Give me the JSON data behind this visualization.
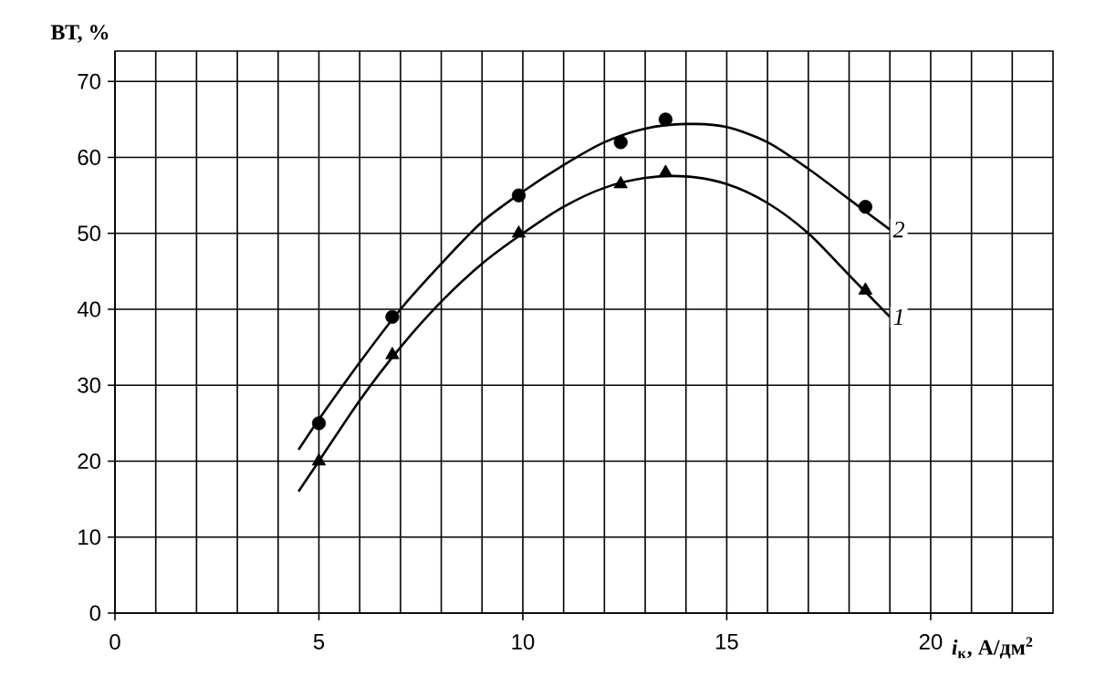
{
  "chart_data": {
    "type": "scatter",
    "xlabel": "*i*$_{к}$, А/дм$^{2}$",
    "ylabel": "ВТ, %",
    "xlim": [
      0,
      23
    ],
    "ylim": [
      0,
      74
    ],
    "xticks": [
      0,
      {
        "value": 1,
        "label": null
      },
      {
        "value": 2,
        "label": null
      },
      {
        "value": 3,
        "label": null
      },
      {
        "value": 4,
        "label": null
      },
      5,
      {
        "value": 6,
        "label": null
      },
      {
        "value": 7,
        "label": null
      },
      {
        "value": 8,
        "label": null
      },
      {
        "value": 9,
        "label": null
      },
      10,
      {
        "value": 11,
        "label": null
      },
      {
        "value": 12,
        "label": null
      },
      {
        "value": 13,
        "label": null
      },
      {
        "value": 14,
        "label": null
      },
      15,
      {
        "value": 16,
        "label": null
      },
      {
        "value": 17,
        "label": null
      },
      {
        "value": 18,
        "label": null
      },
      {
        "value": 19,
        "label": null
      },
      20,
      {
        "value": 21,
        "label": null
      },
      {
        "value": 22,
        "label": null
      }
    ],
    "yticks": [
      0,
      10,
      20,
      30,
      40,
      50,
      60,
      70
    ],
    "grid": true,
    "series": [
      {
        "marker": "circle",
        "color": "#000000",
        "x": [
          5,
          6.8,
          9.9,
          12.4,
          13.5,
          18.4
        ],
        "values": [
          25,
          39,
          55,
          62,
          65,
          53.5
        ]
      },
      {
        "marker": "triangle",
        "color": "#000000",
        "x": [
          5,
          6.8,
          9.9,
          12.4,
          13.5,
          18.4
        ],
        "values": [
          20,
          34,
          50,
          56.5,
          58,
          42.5
        ]
      },
      {
        "type": "line",
        "marker": "none",
        "color": "#000000",
        "x": [
          4.5,
          5,
          6,
          7,
          8,
          9,
          10,
          11,
          12,
          13,
          14,
          15,
          16,
          17,
          18,
          19
        ],
        "values": [
          21.5,
          25.5,
          33,
          40,
          46,
          51.5,
          55.5,
          59,
          62,
          63.8,
          64.4,
          64,
          62,
          58.5,
          54.5,
          50.5
        ]
      },
      {
        "type": "line",
        "marker": "none",
        "color": "#000000",
        "x": [
          4.5,
          5,
          6,
          7,
          8,
          9,
          10,
          11,
          12,
          13,
          14,
          15,
          16,
          17,
          18,
          19
        ],
        "values": [
          16,
          20,
          28,
          35,
          41,
          46,
          50,
          53.5,
          56,
          57.3,
          57.5,
          56.5,
          54,
          50,
          44.5,
          39
        ]
      }
    ],
    "annotations": [
      {
        "text": "2",
        "x": 19,
        "y": 50.5
      },
      {
        "text": "1",
        "x": 19,
        "y": 39
      }
    ]
  }
}
